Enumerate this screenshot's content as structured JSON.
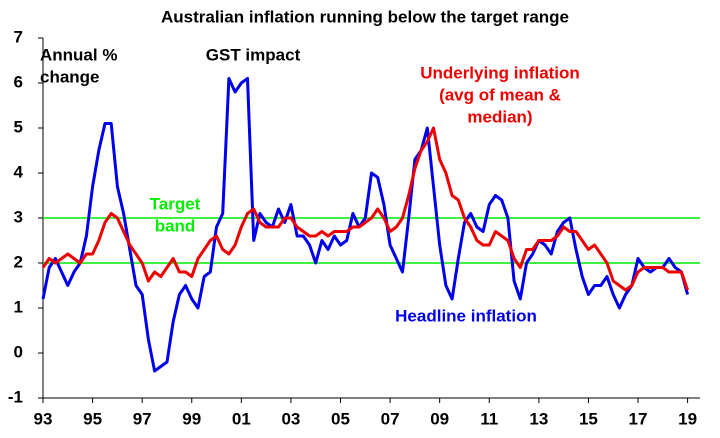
{
  "chart_data": {
    "type": "line",
    "title": "Australian inflation running below the target range",
    "x": [
      1993,
      1993.25,
      1993.5,
      1993.75,
      1994,
      1994.25,
      1994.5,
      1994.75,
      1995,
      1995.25,
      1995.5,
      1995.75,
      1996,
      1996.25,
      1996.5,
      1996.75,
      1997,
      1997.25,
      1997.5,
      1997.75,
      1998,
      1998.25,
      1998.5,
      1998.75,
      1999,
      1999.25,
      1999.5,
      1999.75,
      2000,
      2000.25,
      2000.5,
      2000.75,
      2001,
      2001.25,
      2001.5,
      2001.75,
      2002,
      2002.25,
      2002.5,
      2002.75,
      2003,
      2003.25,
      2003.5,
      2003.75,
      2004,
      2004.25,
      2004.5,
      2004.75,
      2005,
      2005.25,
      2005.5,
      2005.75,
      2006,
      2006.25,
      2006.5,
      2006.75,
      2007,
      2007.25,
      2007.5,
      2007.75,
      2008,
      2008.25,
      2008.5,
      2008.75,
      2009,
      2009.25,
      2009.5,
      2009.75,
      2010,
      2010.25,
      2010.5,
      2010.75,
      2011,
      2011.25,
      2011.5,
      2011.75,
      2012,
      2012.25,
      2012.5,
      2012.75,
      2013,
      2013.25,
      2013.5,
      2013.75,
      2014,
      2014.25,
      2014.5,
      2014.75,
      2015,
      2015.25,
      2015.5,
      2015.75,
      2016,
      2016.25,
      2016.5,
      2016.75,
      2017,
      2017.25,
      2017.5,
      2017.75,
      2018,
      2018.25,
      2018.5,
      2018.75,
      2019
    ],
    "series": [
      {
        "name": "Headline inflation",
        "color": "#0000ee",
        "values": [
          1.2,
          1.9,
          2.1,
          1.8,
          1.5,
          1.8,
          2.0,
          2.6,
          3.7,
          4.5,
          5.1,
          5.1,
          3.7,
          3.1,
          2.3,
          1.5,
          1.3,
          0.3,
          -0.4,
          -0.3,
          -0.2,
          0.7,
          1.3,
          1.5,
          1.2,
          1.0,
          1.7,
          1.8,
          2.8,
          3.1,
          6.1,
          5.8,
          6.0,
          6.1,
          2.5,
          3.1,
          2.9,
          2.8,
          3.2,
          2.9,
          3.3,
          2.6,
          2.6,
          2.4,
          2.0,
          2.5,
          2.3,
          2.6,
          2.4,
          2.5,
          3.1,
          2.8,
          3.0,
          4.0,
          3.9,
          3.3,
          2.4,
          2.1,
          1.8,
          3.0,
          4.3,
          4.5,
          5.0,
          3.7,
          2.4,
          1.5,
          1.2,
          2.1,
          2.9,
          3.1,
          2.8,
          2.7,
          3.3,
          3.5,
          3.4,
          3.0,
          1.6,
          1.2,
          2.0,
          2.2,
          2.5,
          2.4,
          2.2,
          2.7,
          2.9,
          3.0,
          2.3,
          1.7,
          1.3,
          1.5,
          1.5,
          1.7,
          1.3,
          1.0,
          1.3,
          1.5,
          2.1,
          1.9,
          1.8,
          1.9,
          1.9,
          2.1,
          1.9,
          1.8,
          1.3
        ]
      },
      {
        "name": "Underlying inflation (avg of mean & median)",
        "color": "#ee0000",
        "values": [
          1.9,
          2.1,
          2.0,
          2.1,
          2.2,
          2.1,
          2.0,
          2.2,
          2.2,
          2.5,
          2.9,
          3.1,
          3.0,
          2.7,
          2.4,
          2.2,
          2.0,
          1.6,
          1.8,
          1.7,
          1.9,
          2.1,
          1.8,
          1.8,
          1.7,
          2.1,
          2.3,
          2.5,
          2.6,
          2.3,
          2.2,
          2.4,
          2.8,
          3.1,
          3.2,
          2.9,
          2.8,
          2.8,
          2.8,
          3.0,
          3.0,
          2.8,
          2.7,
          2.6,
          2.6,
          2.7,
          2.6,
          2.7,
          2.7,
          2.7,
          2.8,
          2.8,
          2.9,
          3.0,
          3.2,
          3.0,
          2.7,
          2.8,
          3.0,
          3.5,
          4.1,
          4.5,
          4.7,
          5.0,
          4.3,
          4.0,
          3.5,
          3.4,
          3.0,
          2.8,
          2.5,
          2.4,
          2.4,
          2.7,
          2.6,
          2.5,
          2.1,
          1.9,
          2.3,
          2.3,
          2.5,
          2.5,
          2.5,
          2.6,
          2.8,
          2.7,
          2.7,
          2.5,
          2.3,
          2.4,
          2.2,
          2.0,
          1.6,
          1.5,
          1.4,
          1.5,
          1.8,
          1.9,
          1.9,
          1.9,
          1.9,
          1.8,
          1.8,
          1.8,
          1.4
        ]
      }
    ],
    "target_band": {
      "label": [
        "Target",
        "band"
      ],
      "color": "#00ee00",
      "values": [
        2,
        3
      ]
    },
    "annotations": [
      {
        "lines": [
          "Annual %",
          "change"
        ],
        "color": "#000000"
      },
      {
        "lines": [
          "GST impact"
        ],
        "color": "#000000"
      },
      {
        "lines": [
          "Underlying inflation",
          "(avg of mean &",
          "median)"
        ],
        "color": "#ee0000"
      },
      {
        "lines": [
          "Headline inflation"
        ],
        "color": "#0000ee"
      }
    ],
    "xlim": [
      1993,
      2019.5
    ],
    "xticks": [
      {
        "value": 1993,
        "label": "93"
      },
      {
        "value": 1995,
        "label": "95"
      },
      {
        "value": 1997,
        "label": "97"
      },
      {
        "value": 1999,
        "label": "99"
      },
      {
        "value": 2001,
        "label": "01"
      },
      {
        "value": 2003,
        "label": "03"
      },
      {
        "value": 2005,
        "label": "05"
      },
      {
        "value": 2007,
        "label": "07"
      },
      {
        "value": 2009,
        "label": "09"
      },
      {
        "value": 2011,
        "label": "11"
      },
      {
        "value": 2013,
        "label": "13"
      },
      {
        "value": 2015,
        "label": "15"
      },
      {
        "value": 2017,
        "label": "17"
      },
      {
        "value": 2019,
        "label": "19"
      }
    ],
    "ylim": [
      -1,
      7
    ],
    "yticks": [
      -1,
      0,
      1,
      2,
      3,
      4,
      5,
      6,
      7
    ]
  }
}
